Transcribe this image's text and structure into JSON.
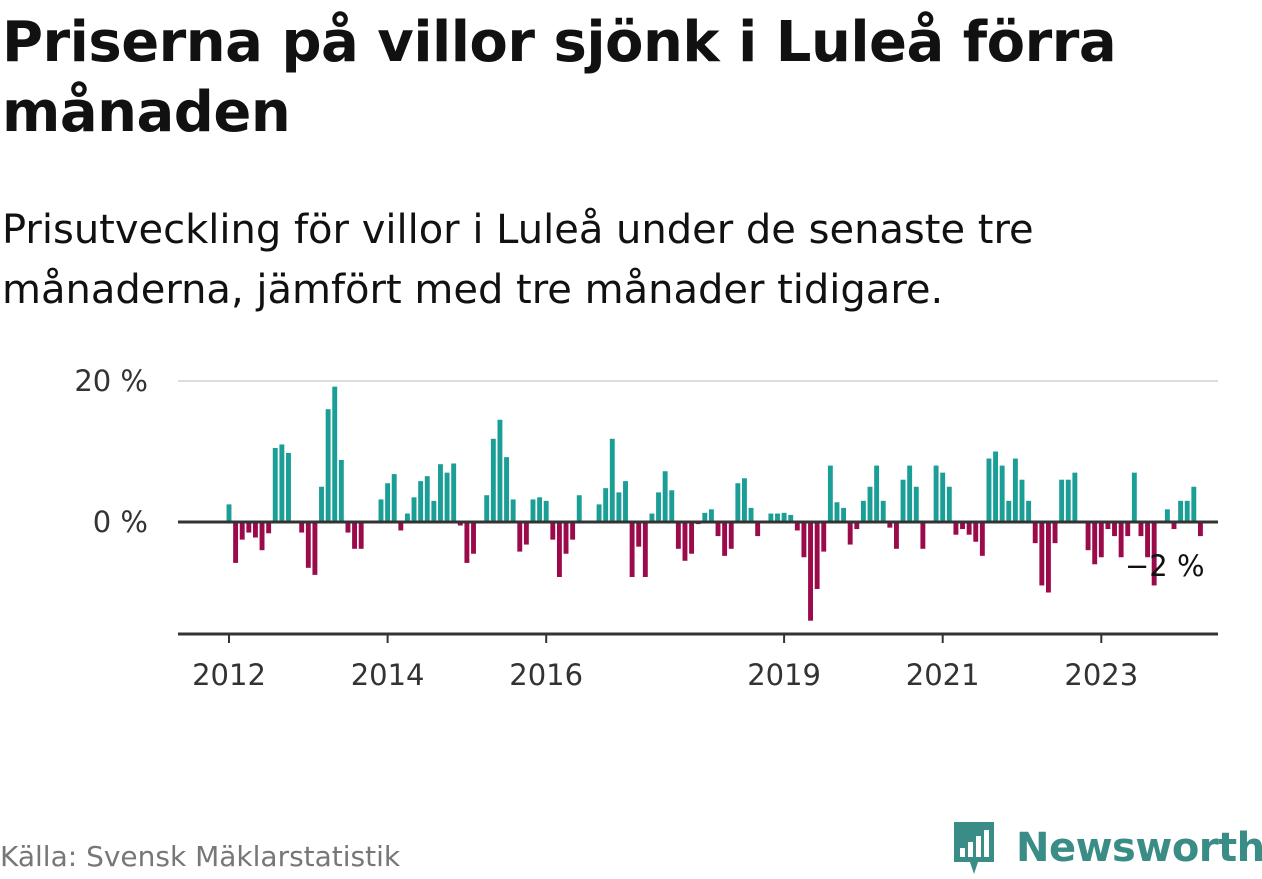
{
  "header": {
    "title": "Priserna på villor sjönk i Luleå förra månaden",
    "subtitle": "Prisutveckling för villor i Luleå under de senaste tre månaderna, jämfört med tre månader tidigare."
  },
  "footer": {
    "source": "Källa: Svensk Mäklarstatistik",
    "brand": "Newsworthy"
  },
  "colors": {
    "positive": "#1a9e96",
    "negative": "#9b0a4a",
    "axis": "#333333",
    "grid": "#dddddd",
    "brand": "#3a8c86"
  },
  "chart_data": {
    "type": "bar",
    "title": "Priserna på villor sjönk i Luleå förra månaden",
    "subtitle": "Prisutveckling för villor i Luleå under de senaste tre månaderna, jämfört med tre månader tidigare.",
    "xlabel": "",
    "ylabel": "",
    "ylim": [
      -15,
      20
    ],
    "y_ticks": [
      {
        "value": 0,
        "label": "0 %"
      },
      {
        "value": 20,
        "label": "20 %"
      }
    ],
    "x_ticks": [
      {
        "value": 2012,
        "label": "2012"
      },
      {
        "value": 2014,
        "label": "2014"
      },
      {
        "value": 2016,
        "label": "2016"
      },
      {
        "value": 2019,
        "label": "2019"
      },
      {
        "value": 2021,
        "label": "2021"
      },
      {
        "value": 2023,
        "label": "2023"
      }
    ],
    "series_start": {
      "year": 2012,
      "month": 1
    },
    "values": [
      2.5,
      -5.8,
      -2.5,
      -1.5,
      -2.2,
      -4.0,
      -1.6,
      10.5,
      11.0,
      9.8,
      null,
      -1.5,
      -6.5,
      -7.5,
      5.0,
      16.0,
      19.2,
      8.8,
      -1.5,
      -3.8,
      -3.8,
      null,
      null,
      3.2,
      5.5,
      6.8,
      -1.2,
      1.2,
      3.5,
      5.8,
      6.5,
      3.0,
      8.2,
      7.0,
      8.3,
      -0.5,
      -5.8,
      -4.5,
      0.2,
      3.8,
      11.8,
      14.5,
      9.2,
      3.2,
      -4.2,
      -3.2,
      3.2,
      3.5,
      3.0,
      -2.5,
      -7.8,
      -4.5,
      -2.5,
      3.8,
      null,
      null,
      2.5,
      4.8,
      11.8,
      4.2,
      5.8,
      -7.8,
      -3.5,
      -7.8,
      1.2,
      4.2,
      7.2,
      4.5,
      -3.8,
      -5.5,
      -4.5,
      -0.3,
      1.3,
      1.8,
      -2.0,
      -4.8,
      -3.8,
      5.5,
      6.2,
      2.0,
      -2.0,
      0.2,
      1.2,
      1.2,
      1.3,
      1.0,
      -1.2,
      -5.0,
      -14.0,
      -9.5,
      -4.2,
      8.0,
      2.8,
      2.0,
      -3.2,
      -1.0,
      3.0,
      5.0,
      8.0,
      3.0,
      -0.8,
      -3.8,
      6.0,
      8.0,
      5.0,
      -3.8,
      null,
      8.0,
      7.0,
      5.0,
      -1.8,
      -1.0,
      -1.8,
      -2.8,
      -4.8,
      9.0,
      10.0,
      8.0,
      3.0,
      9.0,
      6.0,
      3.0,
      -3.0,
      -9.0,
      -10.0,
      -3.0,
      6.0,
      6.0,
      7.0,
      null,
      -4.0,
      -6.0,
      -5.0,
      -1.0,
      -2.0,
      -5.0,
      -2.0,
      7.0,
      -2.0,
      -5.0,
      -9.0,
      null,
      1.8,
      -1.0,
      3.0,
      3.0,
      5.0,
      -2.0
    ],
    "annotations": [
      {
        "text": "−2 %",
        "target": "last"
      }
    ]
  }
}
